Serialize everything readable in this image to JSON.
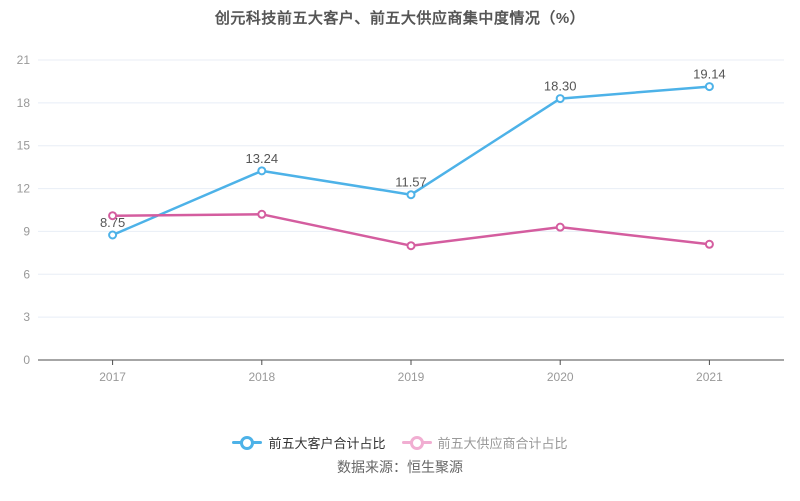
{
  "title": "创元科技前五大客户、前五大供应商集中度情况（%）",
  "source_note": "数据来源：恒生聚源",
  "chart_data": {
    "type": "line",
    "title": "创元科技前五大客户、前五大供应商集中度情况（%）",
    "categories": [
      "2017",
      "2018",
      "2019",
      "2020",
      "2021"
    ],
    "series": [
      {
        "name": "前五大客户合计占比",
        "color": "#4db2e8",
        "values": [
          8.75,
          13.24,
          11.57,
          18.3,
          19.14
        ],
        "labels": [
          "8.75",
          "13.24",
          "11.57",
          "18.30",
          "19.14"
        ],
        "show_labels": true
      },
      {
        "name": "前五大供应商合计占比",
        "color": "#d45d9f",
        "values": [
          10.1,
          10.2,
          8.0,
          9.3,
          8.1
        ],
        "labels": [],
        "show_labels": false
      }
    ],
    "xlabel": "",
    "ylabel": "",
    "ylim": [
      0,
      21
    ],
    "y_ticks": [
      0,
      3,
      6,
      9,
      12,
      15,
      18,
      21
    ],
    "grid": true,
    "legend_position": "bottom"
  },
  "legend": {
    "items": [
      {
        "label": "前五大客户合计占比",
        "icon": "line-circle-icon",
        "icon_color": "#4db2e8",
        "text_color": "#333333"
      },
      {
        "label": "前五大供应商合计占比",
        "icon": "line-circle-icon",
        "icon_color": "#f1aed2",
        "text_color": "#999999"
      }
    ]
  },
  "styles": {
    "grid_color": "#e8eef6",
    "axis_color": "#4d4d4d",
    "tick_label_color": "#999999",
    "data_label_color": "#555555",
    "title_color": "#555555",
    "source_color": "#666666",
    "marker_fill": "#ffffff"
  }
}
